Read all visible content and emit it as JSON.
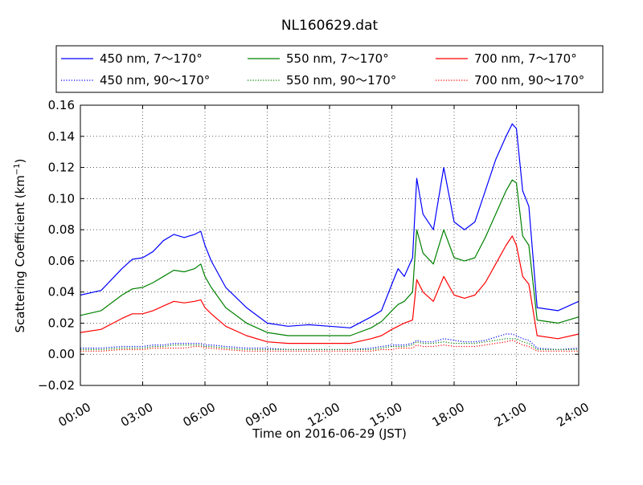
{
  "chart_data": {
    "type": "line",
    "title": "NL160629.dat",
    "xlabel": "Time on 2016-06-29 (JST)",
    "ylabel": "Scattering Coefficient (km",
    "ylabel_sup": "−1",
    "ylabel_tail": ")",
    "xlim": [
      0,
      24
    ],
    "ylim": [
      -0.02,
      0.16
    ],
    "x_ticks": [
      0,
      3,
      6,
      9,
      12,
      15,
      18,
      21,
      24
    ],
    "x_tick_labels": [
      "00:00",
      "03:00",
      "06:00",
      "09:00",
      "12:00",
      "15:00",
      "18:00",
      "21:00",
      "24:00"
    ],
    "y_ticks": [
      -0.02,
      0.0,
      0.02,
      0.04,
      0.06,
      0.08,
      0.1,
      0.12,
      0.14,
      0.16
    ],
    "y_tick_labels": [
      "−0.02",
      "0.00",
      "0.02",
      "0.04",
      "0.06",
      "0.08",
      "0.10",
      "0.12",
      "0.14",
      "0.16"
    ],
    "grid": true,
    "legend_position": "top",
    "x": [
      0,
      1,
      2,
      2.5,
      3,
      3.5,
      4,
      4.5,
      5,
      5.5,
      5.8,
      6,
      6.3,
      7,
      8,
      9,
      10,
      11,
      12,
      13,
      14,
      14.5,
      15,
      15.3,
      15.6,
      16,
      16.2,
      16.5,
      17,
      17.5,
      18,
      18.5,
      19,
      19.5,
      20,
      20.5,
      20.8,
      21,
      21.3,
      21.6,
      22,
      23,
      24
    ],
    "series": [
      {
        "name": "450 nm, 7～170°",
        "color": "#0000ff",
        "style": "solid",
        "values": [
          0.038,
          0.041,
          0.055,
          0.061,
          0.062,
          0.066,
          0.073,
          0.077,
          0.075,
          0.077,
          0.079,
          0.07,
          0.06,
          0.043,
          0.03,
          0.02,
          0.018,
          0.019,
          0.018,
          0.017,
          0.024,
          0.028,
          0.045,
          0.055,
          0.05,
          0.062,
          0.113,
          0.09,
          0.08,
          0.12,
          0.085,
          0.08,
          0.085,
          0.105,
          0.125,
          0.14,
          0.148,
          0.145,
          0.105,
          0.095,
          0.03,
          0.028,
          0.034
        ]
      },
      {
        "name": "450 nm, 90～170°",
        "color": "#0000ff",
        "style": "dotted",
        "values": [
          0.004,
          0.004,
          0.005,
          0.005,
          0.005,
          0.006,
          0.006,
          0.007,
          0.007,
          0.007,
          0.007,
          0.006,
          0.006,
          0.005,
          0.004,
          0.004,
          0.003,
          0.003,
          0.003,
          0.003,
          0.004,
          0.005,
          0.006,
          0.006,
          0.006,
          0.007,
          0.009,
          0.008,
          0.008,
          0.01,
          0.009,
          0.008,
          0.008,
          0.009,
          0.011,
          0.013,
          0.013,
          0.012,
          0.01,
          0.009,
          0.004,
          0.003,
          0.004
        ]
      },
      {
        "name": "550 nm, 7～170°",
        "color": "#008000",
        "style": "solid",
        "values": [
          0.025,
          0.028,
          0.038,
          0.042,
          0.043,
          0.046,
          0.05,
          0.054,
          0.053,
          0.055,
          0.058,
          0.05,
          0.043,
          0.03,
          0.02,
          0.014,
          0.012,
          0.012,
          0.012,
          0.012,
          0.017,
          0.021,
          0.028,
          0.032,
          0.034,
          0.04,
          0.08,
          0.065,
          0.058,
          0.08,
          0.062,
          0.06,
          0.062,
          0.075,
          0.09,
          0.105,
          0.112,
          0.11,
          0.076,
          0.07,
          0.022,
          0.02,
          0.024
        ]
      },
      {
        "name": "550 nm, 90～170°",
        "color": "#008000",
        "style": "dotted",
        "values": [
          0.003,
          0.003,
          0.004,
          0.004,
          0.004,
          0.005,
          0.005,
          0.006,
          0.006,
          0.006,
          0.006,
          0.005,
          0.005,
          0.004,
          0.003,
          0.003,
          0.003,
          0.003,
          0.003,
          0.003,
          0.003,
          0.004,
          0.005,
          0.005,
          0.005,
          0.006,
          0.008,
          0.007,
          0.007,
          0.008,
          0.007,
          0.007,
          0.007,
          0.008,
          0.009,
          0.01,
          0.01,
          0.01,
          0.008,
          0.007,
          0.003,
          0.003,
          0.003
        ]
      },
      {
        "name": "700 nm, 7～170°",
        "color": "#ff0000",
        "style": "solid",
        "values": [
          0.014,
          0.016,
          0.023,
          0.026,
          0.026,
          0.028,
          0.031,
          0.034,
          0.033,
          0.034,
          0.035,
          0.03,
          0.026,
          0.018,
          0.012,
          0.008,
          0.007,
          0.007,
          0.007,
          0.007,
          0.01,
          0.012,
          0.016,
          0.018,
          0.02,
          0.022,
          0.048,
          0.04,
          0.034,
          0.05,
          0.038,
          0.036,
          0.038,
          0.046,
          0.058,
          0.07,
          0.076,
          0.07,
          0.05,
          0.045,
          0.012,
          0.01,
          0.013
        ]
      },
      {
        "name": "700 nm, 90～170°",
        "color": "#ff0000",
        "style": "dotted",
        "values": [
          0.002,
          0.002,
          0.003,
          0.003,
          0.003,
          0.004,
          0.004,
          0.004,
          0.004,
          0.005,
          0.005,
          0.004,
          0.004,
          0.003,
          0.002,
          0.002,
          0.002,
          0.002,
          0.002,
          0.002,
          0.002,
          0.003,
          0.003,
          0.004,
          0.004,
          0.004,
          0.006,
          0.005,
          0.005,
          0.006,
          0.005,
          0.005,
          0.005,
          0.006,
          0.007,
          0.008,
          0.009,
          0.008,
          0.006,
          0.005,
          0.002,
          0.002,
          0.002
        ]
      }
    ]
  }
}
